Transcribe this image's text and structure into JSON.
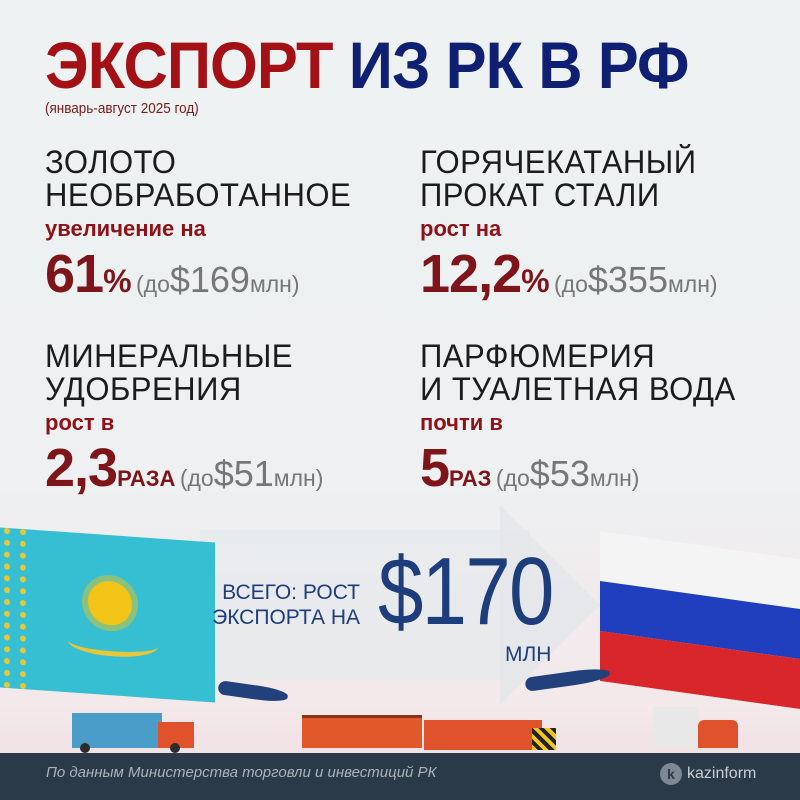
{
  "title": {
    "part1": "ЭКСПОРТ",
    "part2": "ИЗ РК В РФ",
    "subtitle": "(январь-август 2025 год)"
  },
  "items": [
    {
      "heading1": "ЗОЛОТО",
      "heading2": "НЕОБРАБОТАННОЕ",
      "change_label": "увеличение на",
      "value": "61",
      "unit": "%",
      "paren_open": "(до",
      "amount": "$169",
      "amount_unit": "млн)"
    },
    {
      "heading1": "ГОРЯЧЕКАТАНЫЙ",
      "heading2": "ПРОКАТ СТАЛИ",
      "change_label": "рост на",
      "value": "12,2",
      "unit": "%",
      "paren_open": "(до",
      "amount": "$355",
      "amount_unit": "млн)"
    },
    {
      "heading1": "МИНЕРАЛЬНЫЕ",
      "heading2": "УДОБРЕНИЯ",
      "change_label": "рост в",
      "value": "2,3",
      "unit": "РАЗА",
      "paren_open": "(до",
      "amount": "$51",
      "amount_unit": "млн)"
    },
    {
      "heading1": "ПАРФЮМЕРИЯ",
      "heading2": "И ТУАЛЕТНАЯ ВОДА",
      "change_label": "почти в",
      "value": "5",
      "unit": "РАЗ",
      "paren_open": "(до",
      "amount": "$53",
      "amount_unit": "млн)"
    }
  ],
  "total": {
    "label1": "ВСЕГО: РОСТ",
    "label2": "ЭКСПОРТА НА",
    "amount": "$170",
    "unit": "МЛН"
  },
  "footer": {
    "source": "По данным Министерства торговли и инвестиций РК",
    "logo": "kazinform",
    "logo_mark": "k"
  },
  "colors": {
    "red": "#a31116",
    "blue": "#0f1f72",
    "footer": "#2b3a48"
  }
}
